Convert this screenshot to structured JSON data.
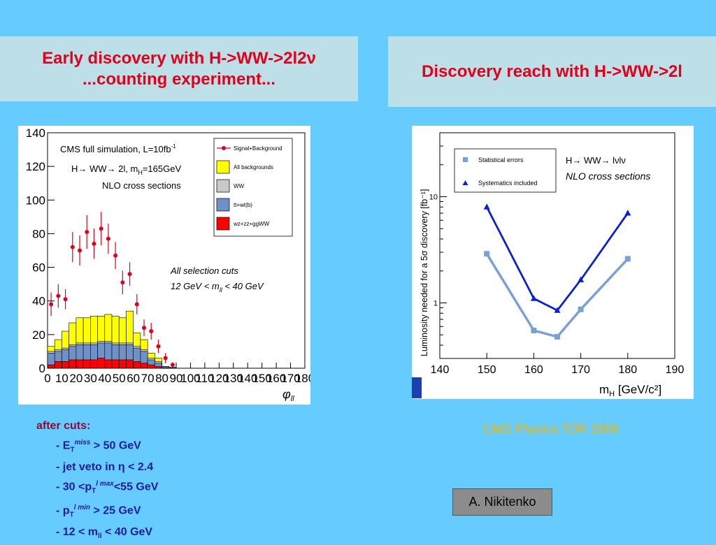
{
  "titles": {
    "left_line1": "Early discovery with H->WW->2l2ν",
    "left_line2": "...counting experiment...",
    "right": "Discovery reach with H->WW->2l"
  },
  "left_chart_text": {
    "sim_label": "CMS full simulation, L=10fb",
    "sim_sup": "-1",
    "process_label": "H→ WW→ 2l, m",
    "process_sub": "H",
    "process_value": "=165GeV",
    "nlo": "NLO cross sections",
    "cuts_line1": "All selection cuts",
    "cuts_line2": "12 GeV < m",
    "cuts_line2_sub": "ll",
    "cuts_line2_end": " < 40 GeV",
    "xlabel": "φ",
    "xlabel_sub": "ll"
  },
  "right_chart_text": {
    "process": "H→ WW→ lνlν",
    "nlo": "NLO cross sections",
    "ylabel": "Luminosity needed for a 5σ discovery [fb⁻¹]",
    "xlabel": "m",
    "xlabel_sub": "H",
    "xlabel_unit": " [GeV/c²]"
  },
  "chart_data": [
    {
      "type": "bar",
      "x": [
        0,
        5,
        10,
        15,
        20,
        25,
        30,
        35,
        40,
        45,
        50,
        55,
        60,
        65,
        70,
        75,
        80,
        85
      ],
      "series": [
        {
          "name": "Signal+Background",
          "kind": "points",
          "color": "#e3001b",
          "values": [
            38,
            43,
            41,
            72,
            70,
            81,
            74,
            83,
            77,
            67,
            51,
            56,
            38,
            24,
            22,
            13,
            6,
            2
          ],
          "errors": [
            7,
            7,
            6,
            9,
            9,
            10,
            9,
            10,
            9,
            8,
            7,
            7,
            6,
            5,
            5,
            4,
            3,
            1.5
          ]
        },
        {
          "name": "All backgrounds",
          "kind": "band",
          "color": "#ffff00",
          "values": [
            13,
            17,
            22,
            27,
            30,
            30,
            31,
            31,
            32,
            31,
            30,
            34,
            21,
            17,
            9,
            6,
            1,
            0.5
          ]
        },
        {
          "name": "WW",
          "kind": "band",
          "color": "#c8c8c8",
          "values": [
            10,
            11,
            12,
            14,
            15,
            15,
            15,
            16,
            16,
            15,
            15,
            15,
            13,
            11,
            6,
            4,
            1,
            0.3
          ]
        },
        {
          "name": "tt+wt(b)",
          "kind": "band",
          "color": "#7090c8",
          "values": [
            9,
            10,
            11,
            13,
            14,
            14,
            14,
            15,
            15,
            14,
            14,
            14,
            12,
            10,
            5,
            3,
            1,
            0.2
          ]
        },
        {
          "name": "wz+zz+ggWW",
          "kind": "band",
          "color": "#ff0000",
          "values": [
            2,
            4,
            4,
            5,
            5,
            5,
            5,
            6,
            5,
            5,
            5,
            5,
            4,
            3,
            2,
            1,
            0.3,
            0.1
          ]
        }
      ],
      "xticks": [
        0,
        10,
        20,
        30,
        40,
        50,
        60,
        70,
        80,
        90,
        100,
        110,
        120,
        130,
        140,
        150,
        160,
        170,
        180
      ],
      "yticks": [
        0,
        20,
        40,
        60,
        80,
        100,
        120,
        140
      ],
      "xlim": [
        0,
        180
      ],
      "ylim": [
        0,
        140
      ],
      "legend_placement": "top-right"
    },
    {
      "type": "line",
      "x": [
        150,
        160,
        165,
        170,
        180
      ],
      "series": [
        {
          "name": "Statistical errors",
          "marker": "square",
          "color": "#7aa0d8",
          "values": [
            2.9,
            0.55,
            0.48,
            0.87,
            2.6
          ]
        },
        {
          "name": "Systematics included",
          "marker": "triangle",
          "color": "#0a20d8",
          "values": [
            8,
            1.1,
            0.85,
            1.65,
            7
          ]
        }
      ],
      "xticks": [
        140,
        150,
        160,
        170,
        180,
        190
      ],
      "yticks": [
        1,
        10
      ],
      "xlim": [
        140,
        190
      ],
      "ylim": [
        0.3,
        40
      ],
      "yscale": "log",
      "legend_placement": "top-left"
    }
  ],
  "cuts": {
    "heading": "after cuts:",
    "items": [
      {
        "pre": "- E",
        "sub": "T",
        "sup": "miss",
        "post": " > 50 GeV"
      },
      {
        "pre": "- jet veto in η < 2.4",
        "sub": "",
        "sup": "",
        "post": ""
      },
      {
        "pre": "- 30 <p",
        "sub": "T",
        "sup": "l max",
        "post": "<55 GeV"
      },
      {
        "pre": "- p",
        "sub": "T",
        "sup": "l min",
        "post": " > 25 GeV"
      },
      {
        "pre": "- 12 < m",
        "sub": "ll",
        "sup": "",
        "post": " < 40 GeV"
      }
    ]
  },
  "source": "CMS Physics TDR 2006",
  "author": "A. Nikitenko"
}
